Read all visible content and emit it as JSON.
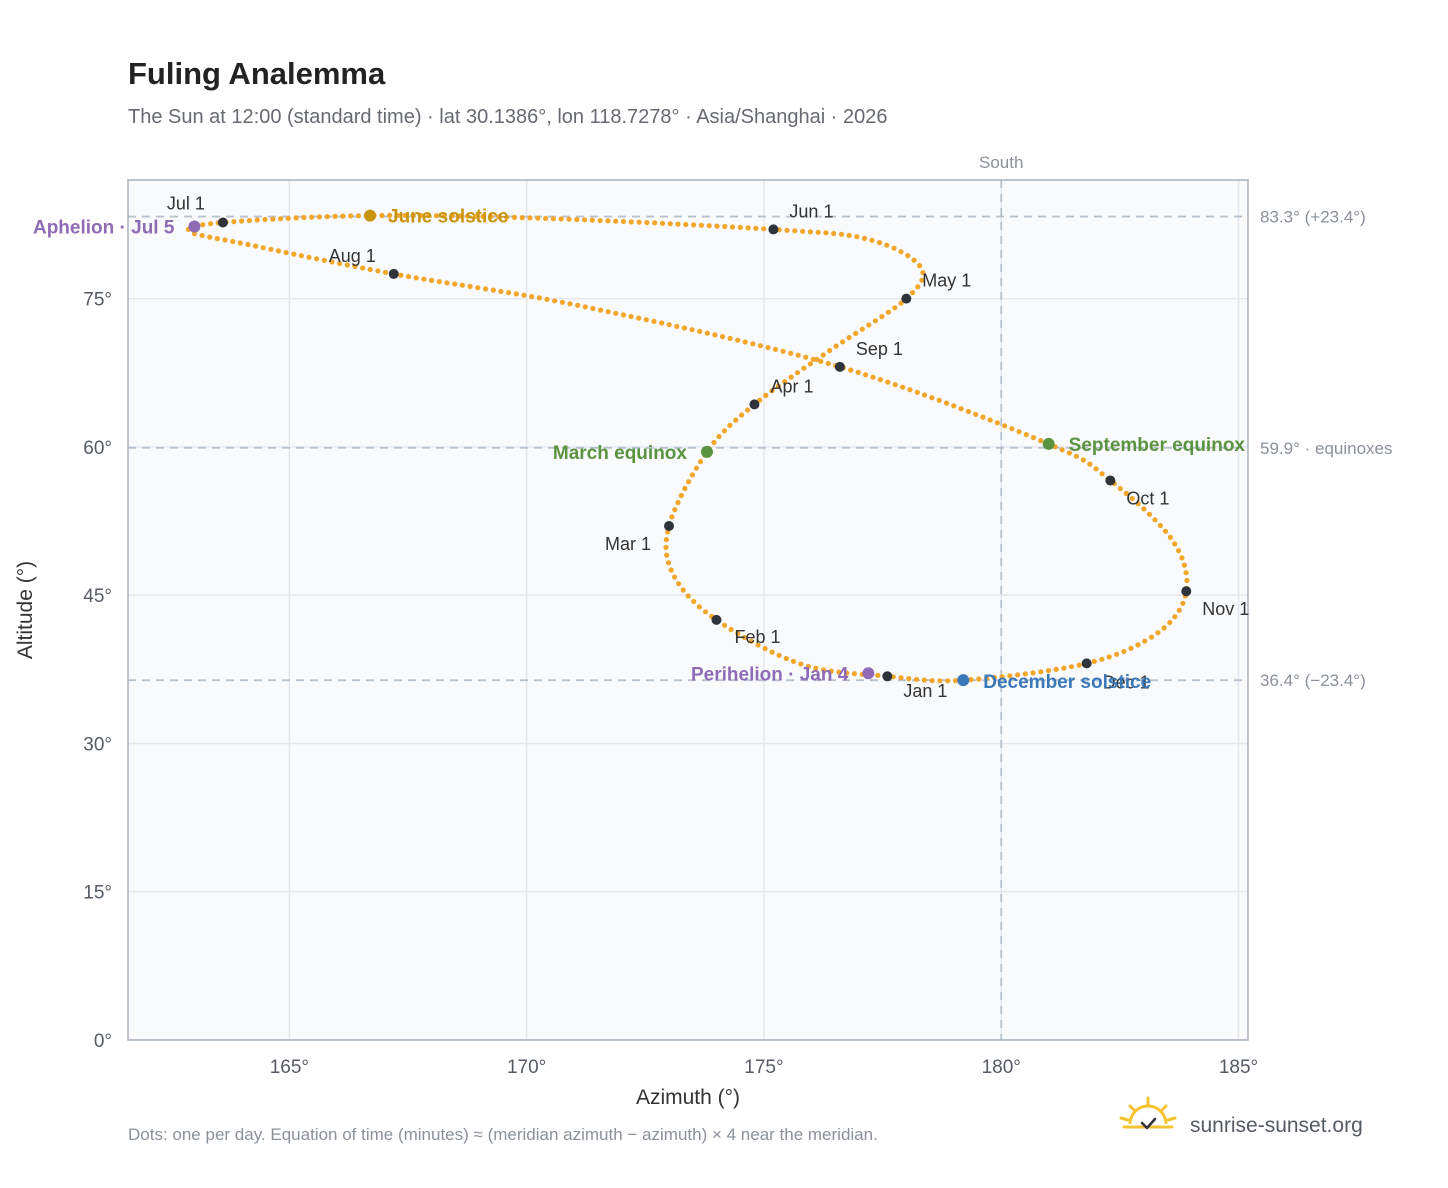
{
  "header": {
    "title": "Fuling Analemma",
    "subtitle": "The Sun at 12:00 (standard time) · lat 30.1386°, lon 118.7278° · Asia/Shanghai · 2026"
  },
  "footer": {
    "note": "Dots: one per day. Equation of time (minutes) ≈ (meridian azimuth − azimuth) × 4 near the meridian.",
    "brand": "sunrise-sunset.org"
  },
  "colors": {
    "curve": "#f2a62a",
    "month_marker": "#2f343b",
    "solstice_june": "#c9950f",
    "equinox": "#5a9440",
    "solstice_december": "#3a78b8",
    "apsis": "#8f6bb5",
    "grid": "#e4e8ee",
    "ref_line": "#b8c2cc",
    "plot_bg": "#f8fafc",
    "frame": "#a7b1bd"
  },
  "chart_data": {
    "type": "scatter",
    "xlabel": "Azimuth (°)",
    "ylabel": "Altitude (°)",
    "xlim": [
      161.6,
      185.2
    ],
    "ylim": [
      0,
      87
    ],
    "x_ticks": [
      165,
      170,
      175,
      180,
      185
    ],
    "x_tick_labels": [
      "165°",
      "170°",
      "175°",
      "180°",
      "185°"
    ],
    "y_ticks": [
      0,
      15,
      30,
      45,
      60,
      75
    ],
    "y_tick_labels": [
      "0°",
      "15°",
      "30°",
      "45°",
      "60°",
      "75°"
    ],
    "grid": true,
    "vertical_reference": {
      "x": 180,
      "label": "South"
    },
    "horizontal_references": [
      {
        "y": 83.3,
        "label": "83.3° (+23.4°)"
      },
      {
        "y": 59.9,
        "label": "59.9° · equinoxes"
      },
      {
        "y": 36.4,
        "label": "36.4° (−23.4°)"
      }
    ],
    "month_markers": [
      {
        "label": "Jan 1",
        "az": 177.6,
        "alt": 36.8
      },
      {
        "label": "Feb 1",
        "az": 174.0,
        "alt": 42.5
      },
      {
        "label": "Mar 1",
        "az": 173.0,
        "alt": 52.0
      },
      {
        "label": "Apr 1",
        "az": 174.8,
        "alt": 64.3
      },
      {
        "label": "May 1",
        "az": 178.0,
        "alt": 75.0
      },
      {
        "label": "Jun 1",
        "az": 175.2,
        "alt": 82.0
      },
      {
        "label": "Jul 1",
        "az": 163.6,
        "alt": 82.7
      },
      {
        "label": "Aug 1",
        "az": 167.2,
        "alt": 77.5
      },
      {
        "label": "Sep 1",
        "az": 176.6,
        "alt": 68.1
      },
      {
        "label": "Oct 1",
        "az": 182.3,
        "alt": 56.6
      },
      {
        "label": "Nov 1",
        "az": 183.9,
        "alt": 45.4
      },
      {
        "label": "Dec 1",
        "az": 181.8,
        "alt": 38.1
      }
    ],
    "events": [
      {
        "label": "June solstice",
        "az": 166.7,
        "alt": 83.4,
        "color_key": "solstice_june"
      },
      {
        "label": "March equinox",
        "az": 173.8,
        "alt": 59.5,
        "color_key": "equinox"
      },
      {
        "label": "September equinox",
        "az": 181.0,
        "alt": 60.3,
        "color_key": "equinox"
      },
      {
        "label": "December solstice",
        "az": 179.2,
        "alt": 36.4,
        "color_key": "solstice_december"
      },
      {
        "label": "Aphelion · Jul 5",
        "az": 163.0,
        "alt": 82.3,
        "color_key": "apsis"
      },
      {
        "label": "Perihelion · Jan 4",
        "az": 177.2,
        "alt": 37.1,
        "color_key": "apsis"
      }
    ],
    "daily_path": [
      [
        179.2,
        36.4
      ],
      [
        177.6,
        36.8
      ],
      [
        175.8,
        38.0
      ],
      [
        174.0,
        42.5
      ],
      [
        173.1,
        47.0
      ],
      [
        173.0,
        52.0
      ],
      [
        173.8,
        59.5
      ],
      [
        174.8,
        64.3
      ],
      [
        176.4,
        69.8
      ],
      [
        178.0,
        75.0
      ],
      [
        178.3,
        78.2
      ],
      [
        177.2,
        81.0
      ],
      [
        175.2,
        82.0
      ],
      [
        170.5,
        83.1
      ],
      [
        166.7,
        83.4
      ],
      [
        163.6,
        82.7
      ],
      [
        162.9,
        81.8
      ],
      [
        164.2,
        80.4
      ],
      [
        167.2,
        77.5
      ],
      [
        171.2,
        74.2
      ],
      [
        176.6,
        68.1
      ],
      [
        181.0,
        60.3
      ],
      [
        182.3,
        56.6
      ],
      [
        183.6,
        50.6
      ],
      [
        183.9,
        45.4
      ],
      [
        183.3,
        41.2
      ],
      [
        181.8,
        38.1
      ],
      [
        179.2,
        36.4
      ]
    ]
  }
}
